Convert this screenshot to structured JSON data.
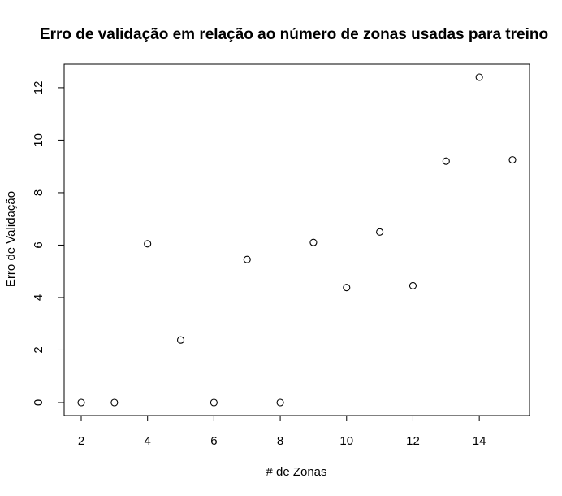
{
  "chart_data": {
    "type": "scatter",
    "title": "Erro de validação em relação ao número de zonas usadas para treino",
    "xlabel": "# de Zonas",
    "ylabel": "Erro de Validação",
    "xlim": [
      2,
      15
    ],
    "ylim": [
      0,
      12.4
    ],
    "xticks": [
      2,
      4,
      6,
      8,
      10,
      12,
      14
    ],
    "yticks": [
      0,
      2,
      4,
      6,
      8,
      10,
      12
    ],
    "grid": false,
    "marker": "open-circle",
    "points": [
      {
        "x": 2,
        "y": 0
      },
      {
        "x": 3,
        "y": 0
      },
      {
        "x": 4,
        "y": 6.05
      },
      {
        "x": 5,
        "y": 2.38
      },
      {
        "x": 6,
        "y": 0
      },
      {
        "x": 7,
        "y": 5.45
      },
      {
        "x": 8,
        "y": 0
      },
      {
        "x": 9,
        "y": 6.1
      },
      {
        "x": 10,
        "y": 4.38
      },
      {
        "x": 11,
        "y": 6.5
      },
      {
        "x": 12,
        "y": 4.45
      },
      {
        "x": 13,
        "y": 9.2
      },
      {
        "x": 14,
        "y": 12.4
      },
      {
        "x": 15,
        "y": 9.25
      }
    ]
  }
}
